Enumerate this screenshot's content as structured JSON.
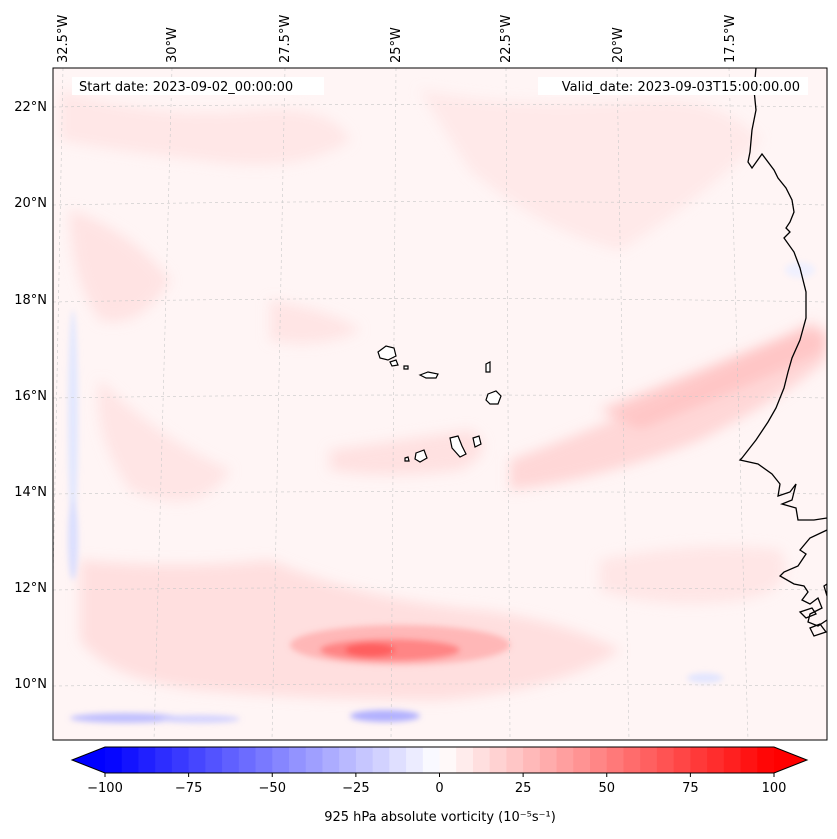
{
  "map": {
    "start_date": "Start date: 2023-09-02_00:00:00",
    "valid_date": "Valid_date: 2023-09-03T15:00:00.00",
    "lon_labels": [
      "32.5°W",
      "30°W",
      "27.5°W",
      "25°W",
      "22.5°W",
      "20°W",
      "17.5°W"
    ],
    "lat_labels": [
      "22°N",
      "20°N",
      "18°N",
      "16°N",
      "14°N",
      "12°N",
      "10°N"
    ],
    "colorbar": {
      "ticks": [
        "−100",
        "−75",
        "−50",
        "−25",
        "0",
        "25",
        "50",
        "75",
        "100"
      ],
      "tick_values": [
        -100,
        -75,
        -50,
        -25,
        0,
        25,
        50,
        75,
        100
      ],
      "min": -100,
      "max": 100,
      "label": "925 hPa absolute vorticity (10⁻⁵s⁻¹)",
      "cmap_low": "#0000ff",
      "cmap_mid": "#ffffff",
      "cmap_high": "#ff0000"
    },
    "colors": {
      "background_field": "#fff5f5",
      "coast": "#000000",
      "grid": "#c8c8c8"
    }
  }
}
